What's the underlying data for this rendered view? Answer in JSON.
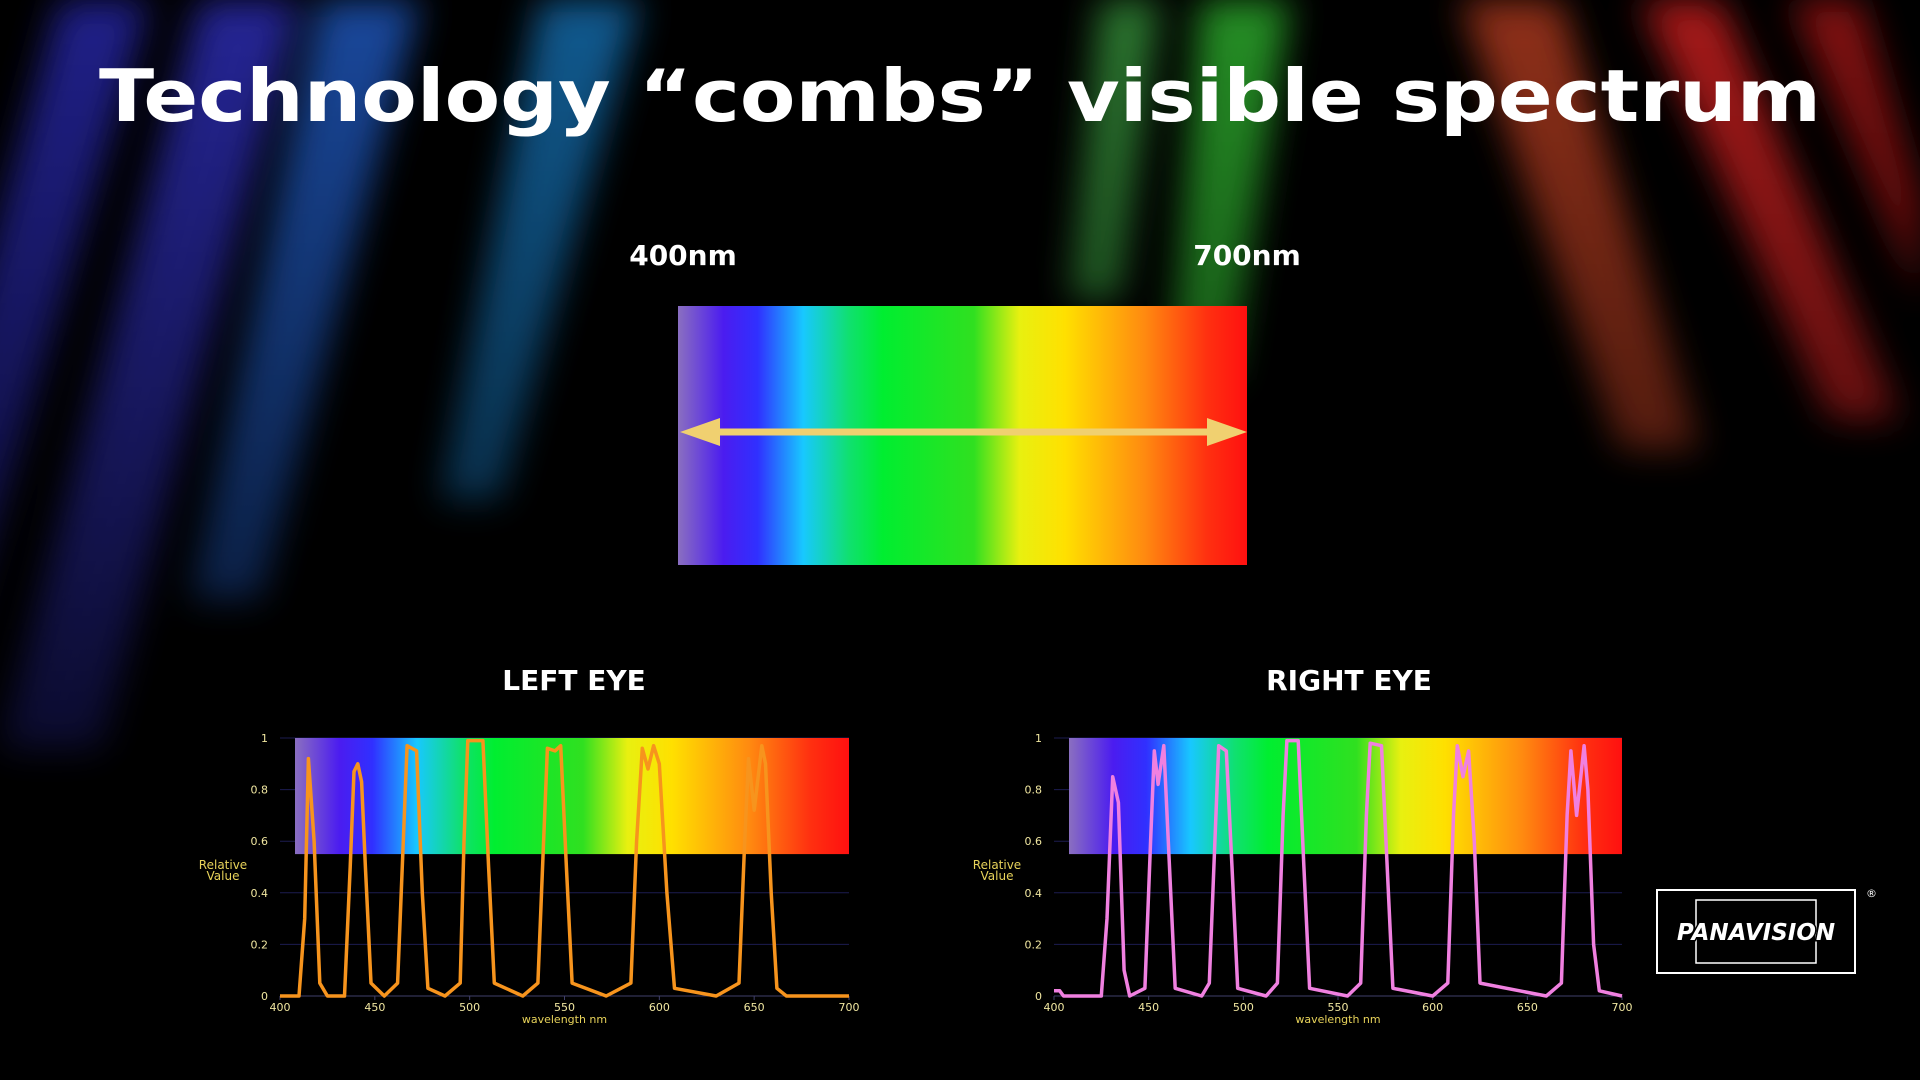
{
  "slide": {
    "title": "Technology “combs” visible spectrum",
    "spectrum_start": "400nm",
    "spectrum_end": "700nm",
    "logo": "PANAVISION",
    "logo_mark": "®"
  },
  "chart_data": [
    {
      "type": "line",
      "title": "LEFT EYE",
      "xlabel": "wavelength nm",
      "ylabel": "Relative Value",
      "xlim": [
        400,
        700
      ],
      "xticks": [
        400,
        450,
        500,
        550,
        600,
        650,
        700
      ],
      "ylim": [
        0,
        1
      ],
      "yticks": [
        0,
        0.2,
        0.4,
        0.6,
        0.8,
        1
      ],
      "grid": true,
      "x": [
        400,
        410,
        413,
        415,
        418,
        421,
        425,
        434,
        437,
        439,
        441,
        443,
        445,
        448,
        455,
        462,
        465,
        467,
        472,
        475,
        478,
        487,
        495,
        497,
        499,
        507,
        510,
        513,
        528,
        536,
        539,
        541,
        545,
        548,
        551,
        554,
        572,
        585,
        588,
        591,
        594,
        597,
        600,
        604,
        608,
        630,
        642,
        645,
        647,
        650,
        654,
        656,
        659,
        662,
        667,
        700
      ],
      "series": [
        {
          "name": "Left eye",
          "color": "#f7941d",
          "values": [
            0,
            0,
            0.3,
            0.92,
            0.6,
            0.05,
            0,
            0,
            0.5,
            0.87,
            0.9,
            0.83,
            0.5,
            0.05,
            0,
            0.05,
            0.6,
            0.97,
            0.95,
            0.4,
            0.03,
            0,
            0.05,
            0.6,
            0.99,
            0.99,
            0.5,
            0.05,
            0,
            0.05,
            0.6,
            0.96,
            0.95,
            0.97,
            0.5,
            0.05,
            0,
            0.05,
            0.6,
            0.96,
            0.88,
            0.97,
            0.9,
            0.4,
            0.03,
            0,
            0.05,
            0.6,
            0.92,
            0.72,
            0.97,
            0.9,
            0.4,
            0.03,
            0,
            0
          ]
        }
      ]
    },
    {
      "type": "line",
      "title": "RIGHT EYE",
      "xlabel": "wavelength nm",
      "ylabel": "Relative Value",
      "xlim": [
        400,
        700
      ],
      "xticks": [
        400,
        450,
        500,
        550,
        600,
        650,
        700
      ],
      "ylim": [
        0,
        1
      ],
      "yticks": [
        0,
        0.2,
        0.4,
        0.6,
        0.8,
        1
      ],
      "grid": true,
      "x": [
        400,
        403,
        405,
        425,
        428,
        431,
        434,
        437,
        440,
        448,
        451,
        453,
        455,
        458,
        461,
        464,
        478,
        482,
        485,
        487,
        491,
        494,
        497,
        512,
        518,
        521,
        523,
        529,
        532,
        535,
        555,
        562,
        565,
        567,
        573,
        576,
        579,
        600,
        608,
        611,
        613,
        616,
        619,
        622,
        625,
        660,
        668,
        671,
        673,
        676,
        680,
        682,
        685,
        688,
        700
      ],
      "series": [
        {
          "name": "Right eye",
          "color": "#f080e0",
          "values": [
            0.02,
            0.02,
            0,
            0,
            0.3,
            0.85,
            0.75,
            0.1,
            0,
            0.03,
            0.6,
            0.95,
            0.82,
            0.97,
            0.5,
            0.03,
            0,
            0.05,
            0.6,
            0.97,
            0.95,
            0.5,
            0.03,
            0,
            0.05,
            0.7,
            0.99,
            0.99,
            0.5,
            0.03,
            0,
            0.05,
            0.7,
            0.98,
            0.97,
            0.5,
            0.03,
            0,
            0.05,
            0.7,
            0.97,
            0.85,
            0.95,
            0.6,
            0.05,
            0,
            0.05,
            0.7,
            0.95,
            0.7,
            0.97,
            0.8,
            0.2,
            0.02,
            0
          ]
        }
      ]
    }
  ]
}
